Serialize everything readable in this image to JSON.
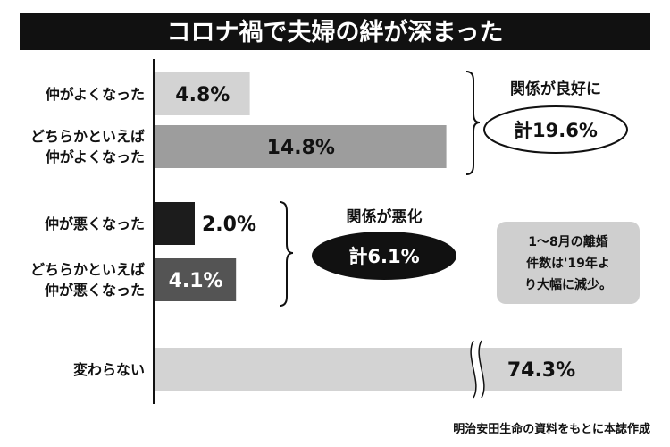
{
  "chart_data": {
    "type": "bar",
    "orientation": "horizontal",
    "title": "コロナ禍で夫婦の絆が深まった",
    "unit": "%",
    "categories": [
      [
        "仲がよくなった"
      ],
      [
        "どちらかといえば",
        "仲がよくなった"
      ],
      [
        "仲が悪くなった"
      ],
      [
        "どちらかといえば",
        "仲が悪くなった"
      ],
      [
        "変わらない"
      ]
    ],
    "values": [
      4.8,
      14.8,
      2.0,
      4.1,
      74.3
    ],
    "value_labels": [
      "4.8%",
      "14.8%",
      "2.0%",
      "4.1%",
      "74.3%"
    ],
    "bar_colors": [
      "#d3d3d3",
      "#9d9d9d",
      "#1c1c1c",
      "#545454",
      "#d3d3d3"
    ],
    "axis_break_on": "変わらない",
    "groups": [
      {
        "label": "関係が良好に",
        "total_label": "計19.6%",
        "members": [
          0,
          1
        ],
        "oval_fill": "#ffffff",
        "oval_text_color": "#111111"
      },
      {
        "label": "関係が悪化",
        "total_label": "計6.1%",
        "members": [
          2,
          3
        ],
        "oval_fill": "#111111",
        "oval_text_color": "#ffffff"
      }
    ],
    "note": [
      "1～8月の離婚",
      "件数は'19年よ",
      "り大幅に減少。"
    ],
    "source": "明治安田生命の資料をもとに本誌作成",
    "colors": {
      "title_bg": "#111111",
      "note_bg": "#cfcfcf",
      "axis": "#111111"
    }
  }
}
